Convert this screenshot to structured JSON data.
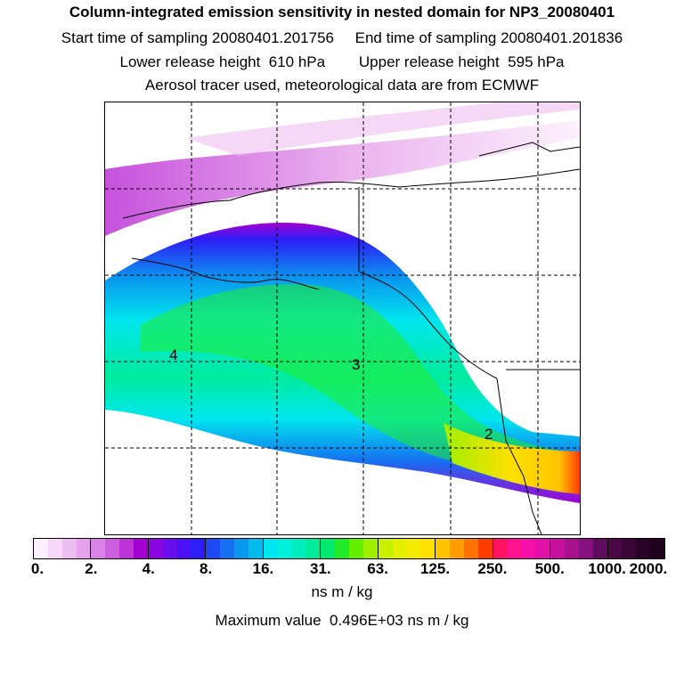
{
  "header": {
    "title": "Column-integrated emission sensitivity in nested domain for NP3_20080401",
    "line1": "Start time of sampling 20080401.201756     End time of sampling 20080401.201836",
    "line2": "Lower release height  610 hPa        Upper release height  595 hPa",
    "line3": "Aerosol tracer used, meteorological data are from ECMWF"
  },
  "map": {
    "region_labels": [
      "4",
      "3",
      "2"
    ],
    "grid": true
  },
  "colorbar": {
    "tick_labels": [
      "0.",
      "2.",
      "4.",
      "8.",
      "16.",
      "31.",
      "63.",
      "125.",
      "250.",
      "500.",
      "1000.",
      "2000."
    ],
    "segment_colors": [
      [
        "#fdf0fd",
        "#f6d7f7",
        "#eebdf0",
        "#e6a2ea"
      ],
      [
        "#d884e4",
        "#cb5fdd",
        "#bc33d6",
        "#a400d2"
      ],
      [
        "#8a06e0",
        "#6a0ded",
        "#4a10f5",
        "#2c1ef5"
      ],
      [
        "#1e49f3",
        "#1670f0",
        "#0a98ee",
        "#03bbec"
      ],
      [
        "#00e6ee",
        "#00f0dc",
        "#00eebe",
        "#00ec9c"
      ],
      [
        "#00e86d",
        "#22ec2a",
        "#62f000",
        "#9ef000"
      ],
      [
        "#c8f000",
        "#e4f000",
        "#f3ec00",
        "#fee000"
      ],
      [
        "#fec400",
        "#fe9c00",
        "#fe7200",
        "#fe3c00"
      ],
      [
        "#fe1460",
        "#fe1290",
        "#f510a8",
        "#e212a8"
      ],
      [
        "#c8109e",
        "#a8108e",
        "#861080",
        "#600c5e"
      ],
      [
        "#4a0846",
        "#3a0638",
        "#2a0428",
        "#1e021e"
      ]
    ],
    "units": "ns m / kg",
    "max_label": "Maximum value  0.496E+03 ns m / kg"
  }
}
